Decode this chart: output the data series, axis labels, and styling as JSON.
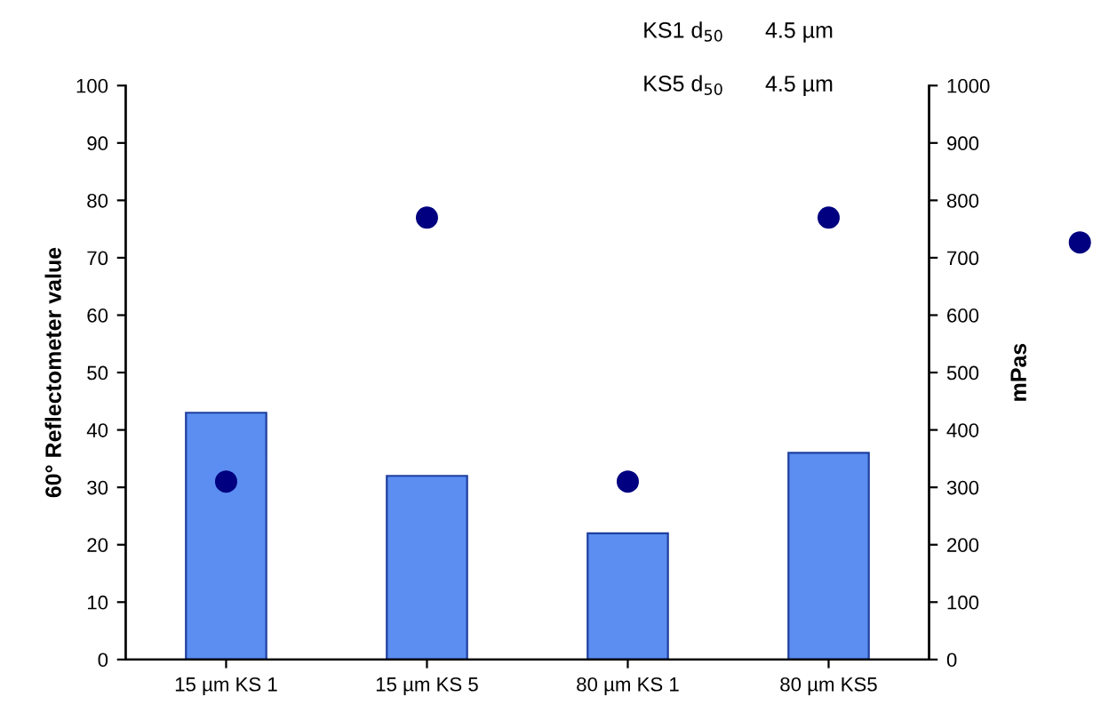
{
  "chart_data": {
    "type": "bar",
    "categories": [
      "15 µm KS 1",
      "15 µm KS 5",
      "80 µm KS 1",
      "80 µm KS5"
    ],
    "ylabel": "60° Reflectometer value",
    "y2label": "mPas",
    "ylim": [
      0,
      100
    ],
    "yticks": [
      0,
      10,
      20,
      30,
      40,
      50,
      60,
      70,
      80,
      90,
      100
    ],
    "y2lim": [
      0,
      1000
    ],
    "y2ticks": [
      0,
      100,
      200,
      300,
      400,
      500,
      600,
      700,
      800,
      900,
      1000
    ],
    "grid": false,
    "series": [
      {
        "color": "#5b8ef0",
        "values": [
          43,
          32,
          22,
          36
        ]
      },
      {
        "type": "scatter",
        "axis": "y2",
        "color": "#000080",
        "marker": "circle",
        "values": [
          310,
          770,
          310,
          770
        ]
      }
    ],
    "annotations": [
      "KS1 d$_{50}$",
      "4.5 µm",
      "KS5 d$_{50}$",
      "4.5 µm"
    ]
  }
}
